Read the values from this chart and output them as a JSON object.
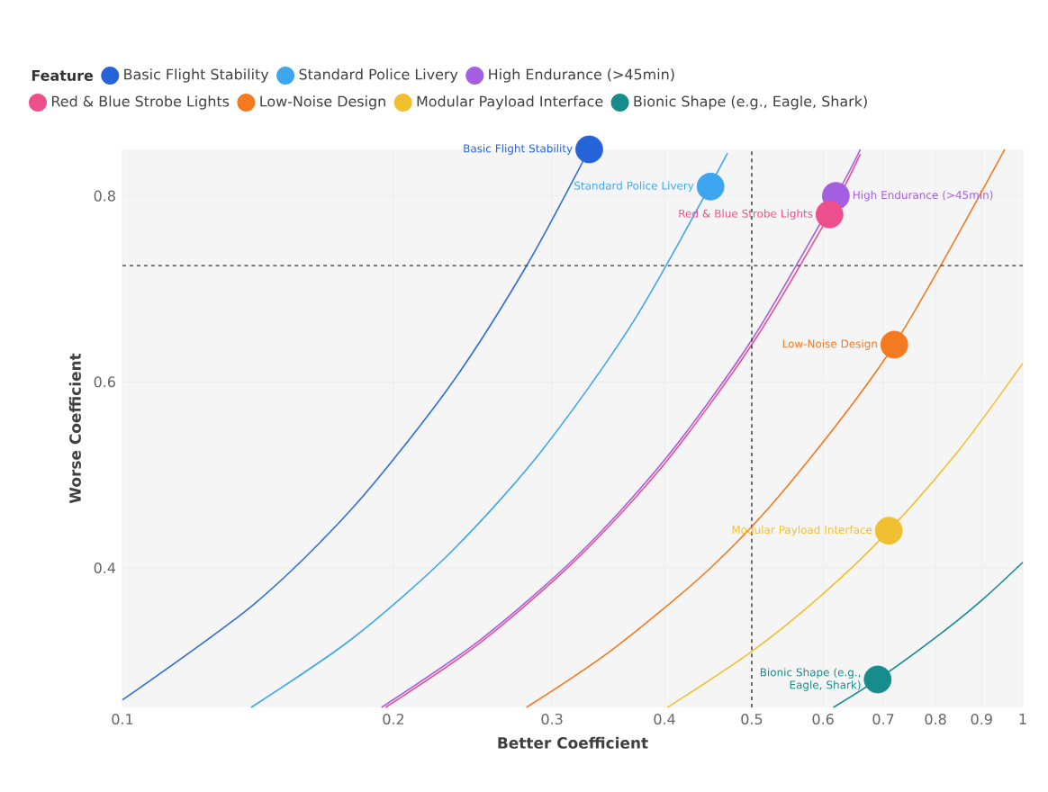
{
  "chart_data": {
    "type": "scatter",
    "xlabel": "Better Coefficient",
    "ylabel": "Worse Coefficient",
    "legend_title": "Feature",
    "log": "x",
    "grid": true,
    "legend": "top",
    "xlim": [
      0.1,
      1
    ],
    "ylim": [
      0.25,
      0.85
    ],
    "xticks": [
      0.1,
      0.2,
      0.3,
      0.4,
      0.5,
      0.6,
      0.7,
      0.8,
      0.9,
      1
    ],
    "yticks": [
      0.4,
      0.6,
      0.8
    ],
    "ref_lines": [
      {
        "axis": "y",
        "value": 0.725,
        "line_style": "dashed",
        "color": "#333333"
      },
      {
        "axis": "x",
        "value": 0.5,
        "line_style": "dashed",
        "color": "#333333"
      }
    ],
    "series": [
      {
        "type": "line",
        "marker": "none",
        "color": "#2f6fd8",
        "x": [
          0.1,
          0.14,
          0.18,
          0.23,
          0.28,
          0.33
        ],
        "values": [
          0.258,
          0.361,
          0.464,
          0.593,
          0.722,
          0.85
        ]
      },
      {
        "type": "line",
        "marker": "none",
        "color": "#3ea6f0",
        "x": [
          0.139,
          0.18,
          0.23,
          0.29,
          0.37,
          0.47
        ],
        "values": [
          0.25,
          0.324,
          0.414,
          0.522,
          0.666,
          0.846
        ]
      },
      {
        "type": "line",
        "marker": "none",
        "color": "#ec4f8c",
        "x": [
          0.196,
          0.25,
          0.32,
          0.4,
          0.5,
          0.61,
          0.66
        ],
        "values": [
          0.25,
          0.32,
          0.41,
          0.512,
          0.64,
          0.78,
          0.845
        ]
      },
      {
        "type": "line",
        "marker": "none",
        "color": "#a45ee0",
        "x": [
          0.194,
          0.25,
          0.32,
          0.4,
          0.5,
          0.62,
          0.66
        ],
        "values": [
          0.25,
          0.323,
          0.413,
          0.516,
          0.645,
          0.8,
          0.85
        ]
      },
      {
        "type": "line",
        "marker": "none",
        "color": "#f47a1f",
        "x": [
          0.281,
          0.35,
          0.45,
          0.55,
          0.72,
          0.955
        ],
        "values": [
          0.25,
          0.312,
          0.4,
          0.49,
          0.64,
          0.85
        ]
      },
      {
        "type": "line",
        "marker": "none",
        "color": "#f0c030",
        "x": [
          0.403,
          0.5,
          0.6,
          0.71,
          0.85,
          1.0
        ],
        "values": [
          0.25,
          0.31,
          0.372,
          0.44,
          0.527,
          0.62
        ]
      },
      {
        "type": "line",
        "marker": "none",
        "color": "#178c8c",
        "x": [
          0.616,
          0.69,
          0.8,
          0.9,
          1.0
        ],
        "values": [
          0.25,
          0.28,
          0.325,
          0.365,
          0.406
        ]
      },
      {
        "name": "Basic Flight Stability",
        "marker": "circle",
        "color": "#2563d9",
        "x": [
          0.33
        ],
        "values": [
          0.85
        ]
      },
      {
        "name": "Standard Police Livery",
        "marker": "circle",
        "color": "#3ea6f0",
        "x": [
          0.45
        ],
        "values": [
          0.81
        ]
      },
      {
        "name": "High Endurance (>45min)",
        "marker": "circle",
        "color": "#a45ee0",
        "x": [
          0.62
        ],
        "values": [
          0.8
        ]
      },
      {
        "name": "Red & Blue Strobe Lights",
        "marker": "circle",
        "color": "#ec4f8c",
        "x": [
          0.61
        ],
        "values": [
          0.78
        ]
      },
      {
        "name": "Low-Noise Design",
        "marker": "circle",
        "color": "#f47a1f",
        "x": [
          0.72
        ],
        "values": [
          0.64
        ]
      },
      {
        "name": "Modular Payload Interface",
        "marker": "circle",
        "color": "#f0c030",
        "x": [
          0.71
        ],
        "values": [
          0.44
        ]
      },
      {
        "name": "Bionic Shape (e.g., Eagle, Shark)",
        "marker": "circle",
        "color": "#178c8c",
        "x": [
          0.69
        ],
        "values": [
          0.28
        ]
      }
    ]
  }
}
